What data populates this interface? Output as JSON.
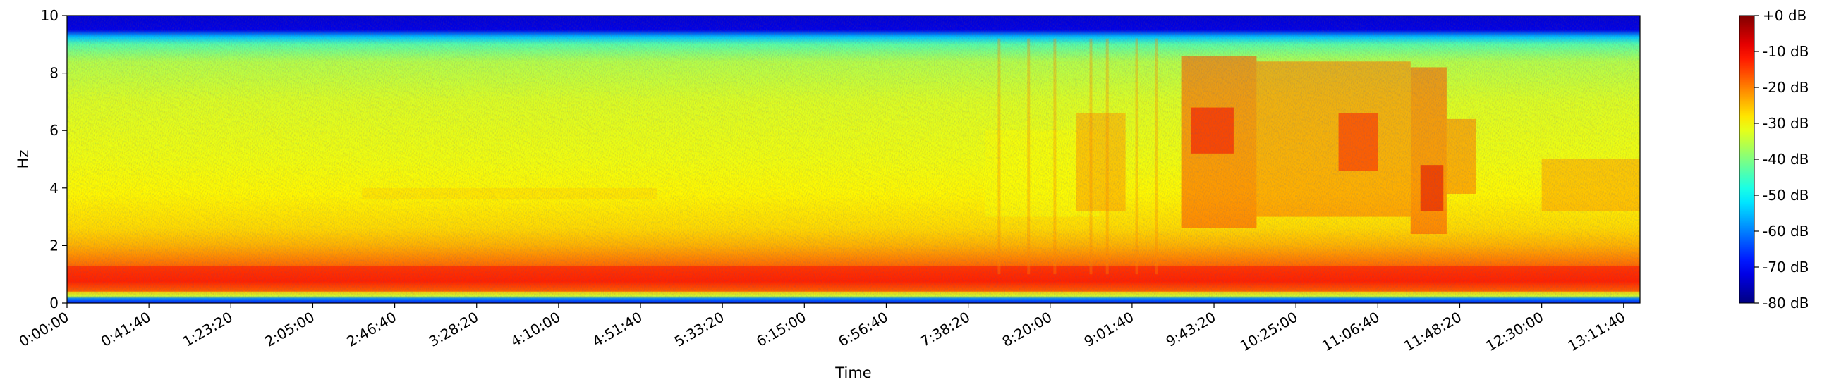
{
  "chart_data": {
    "type": "heatmap",
    "title": "",
    "xlabel": "Time",
    "ylabel": "Hz",
    "ylim": [
      0,
      10
    ],
    "yticks": [
      0,
      2,
      4,
      6,
      8,
      10
    ],
    "ytick_labels": [
      "0",
      "2",
      "4",
      "6",
      "8",
      "10"
    ],
    "xticks": [
      "0:00:00",
      "0:41:40",
      "1:23:20",
      "2:05:00",
      "2:46:40",
      "3:28:20",
      "4:10:00",
      "4:51:40",
      "5:33:20",
      "6:15:00",
      "6:56:40",
      "7:38:20",
      "8:20:00",
      "9:01:40",
      "9:43:20",
      "10:25:00",
      "11:06:40",
      "11:48:20",
      "12:30:00",
      "13:11:40"
    ],
    "xtick_seconds": [
      0,
      2500,
      5000,
      7500,
      10000,
      12500,
      15000,
      17500,
      20000,
      22500,
      25000,
      27500,
      30000,
      32500,
      35000,
      37500,
      40000,
      42500,
      45000,
      47500
    ],
    "xlim_seconds": [
      0,
      48000
    ],
    "colormap": "jet",
    "colorbar": {
      "range_db": [
        -80,
        0
      ],
      "ticks": [
        0,
        -10,
        -20,
        -30,
        -40,
        -50,
        -60,
        -70,
        -80
      ],
      "tick_labels": [
        "+0 dB",
        "-10 dB",
        "-20 dB",
        "-30 dB",
        "-40 dB",
        "-50 dB",
        "-60 dB",
        "-70 dB",
        "-80 dB"
      ]
    },
    "grid": false
  }
}
